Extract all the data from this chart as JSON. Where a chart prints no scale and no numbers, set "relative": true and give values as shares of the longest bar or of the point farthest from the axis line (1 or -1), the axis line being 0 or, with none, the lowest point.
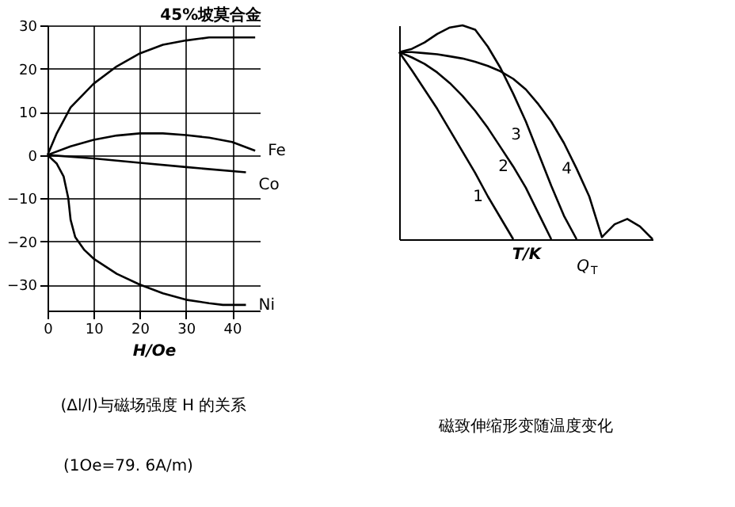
{
  "chart_data": [
    {
      "type": "line",
      "title": "(Δl/l)与磁场强度 H 的关系",
      "xlabel": "H/Oe",
      "xlim": [
        0,
        46
      ],
      "ylim": [
        -36,
        30
      ],
      "xticks": [
        0,
        10,
        20,
        30,
        40
      ],
      "yticks": [
        -30,
        -20,
        -10,
        0,
        10,
        20,
        30
      ],
      "grid": true,
      "annotations": [
        "(1Oe=79. 6A/m)"
      ],
      "series": [
        {
          "name": "45%坡莫合金",
          "color": "#000000",
          "x": [
            0,
            2,
            5,
            10,
            15,
            20,
            25,
            30,
            35,
            40,
            45
          ],
          "values": [
            0,
            5,
            11,
            16.5,
            20.5,
            23.5,
            25.5,
            26.5,
            27.2,
            27.2,
            27.2
          ]
        },
        {
          "name": "Fe",
          "color": "#000000",
          "x": [
            0,
            5,
            10,
            15,
            20,
            25,
            30,
            35,
            40,
            45
          ],
          "values": [
            0,
            2,
            3.5,
            4.5,
            5,
            5,
            4.6,
            4,
            3,
            1
          ]
        },
        {
          "name": "Co",
          "color": "#000000",
          "x": [
            0,
            10,
            20,
            30,
            43
          ],
          "values": [
            0,
            -0.8,
            -1.8,
            -2.8,
            -4
          ]
        },
        {
          "name": "Ni",
          "color": "#000000",
          "x": [
            0,
            2,
            3.5,
            4.5,
            5,
            6,
            8,
            10,
            15,
            20,
            25,
            30,
            35,
            38,
            43
          ],
          "values": [
            0,
            -2,
            -5,
            -10,
            -15,
            -19,
            -22,
            -24,
            -27.5,
            -30,
            -32,
            -33.5,
            -34.3,
            -34.7,
            -34.7
          ]
        }
      ]
    },
    {
      "type": "line",
      "title": "磁致伸缩形变随温度变化",
      "xlabel": "T/K",
      "relative": true,
      "tick_labels": false,
      "annotations": [
        "Q$_{T}$"
      ],
      "categories": [
        null,
        null,
        null,
        null,
        null,
        null,
        null,
        null,
        null,
        null,
        null,
        null,
        null,
        null,
        null,
        null,
        null,
        null,
        null,
        null,
        null
      ],
      "series": [
        {
          "name": "1",
          "color": "#000000",
          "values": [
            0.875,
            0.79,
            0.7,
            0.61,
            0.51,
            0.41,
            0.31,
            0.2,
            0.1,
            0,
            null,
            null,
            null,
            null,
            null,
            null,
            null,
            null,
            null,
            null,
            null
          ]
        },
        {
          "name": "2",
          "color": "#000000",
          "values": [
            0.875,
            0.85,
            0.82,
            0.78,
            0.73,
            0.67,
            0.6,
            0.52,
            0.43,
            0.34,
            0.24,
            0.12,
            0,
            null,
            null,
            null,
            null,
            null,
            null,
            null,
            null
          ]
        },
        {
          "name": "3",
          "color": "#000000",
          "values": [
            0.875,
            0.89,
            0.92,
            0.96,
            0.99,
            1,
            0.98,
            0.9,
            0.8,
            0.68,
            0.55,
            0.4,
            0.25,
            0.11,
            0,
            null,
            null,
            null,
            null,
            null,
            null
          ]
        },
        {
          "name": "4",
          "color": "#000000",
          "values": [
            0.875,
            0.875,
            0.87,
            0.865,
            0.855,
            0.845,
            0.83,
            0.81,
            0.785,
            0.75,
            0.7,
            0.63,
            0.55,
            0.45,
            0.33,
            0.2,
            0.01,
            0.07,
            0.095,
            0.06,
            0
          ]
        }
      ]
    }
  ]
}
